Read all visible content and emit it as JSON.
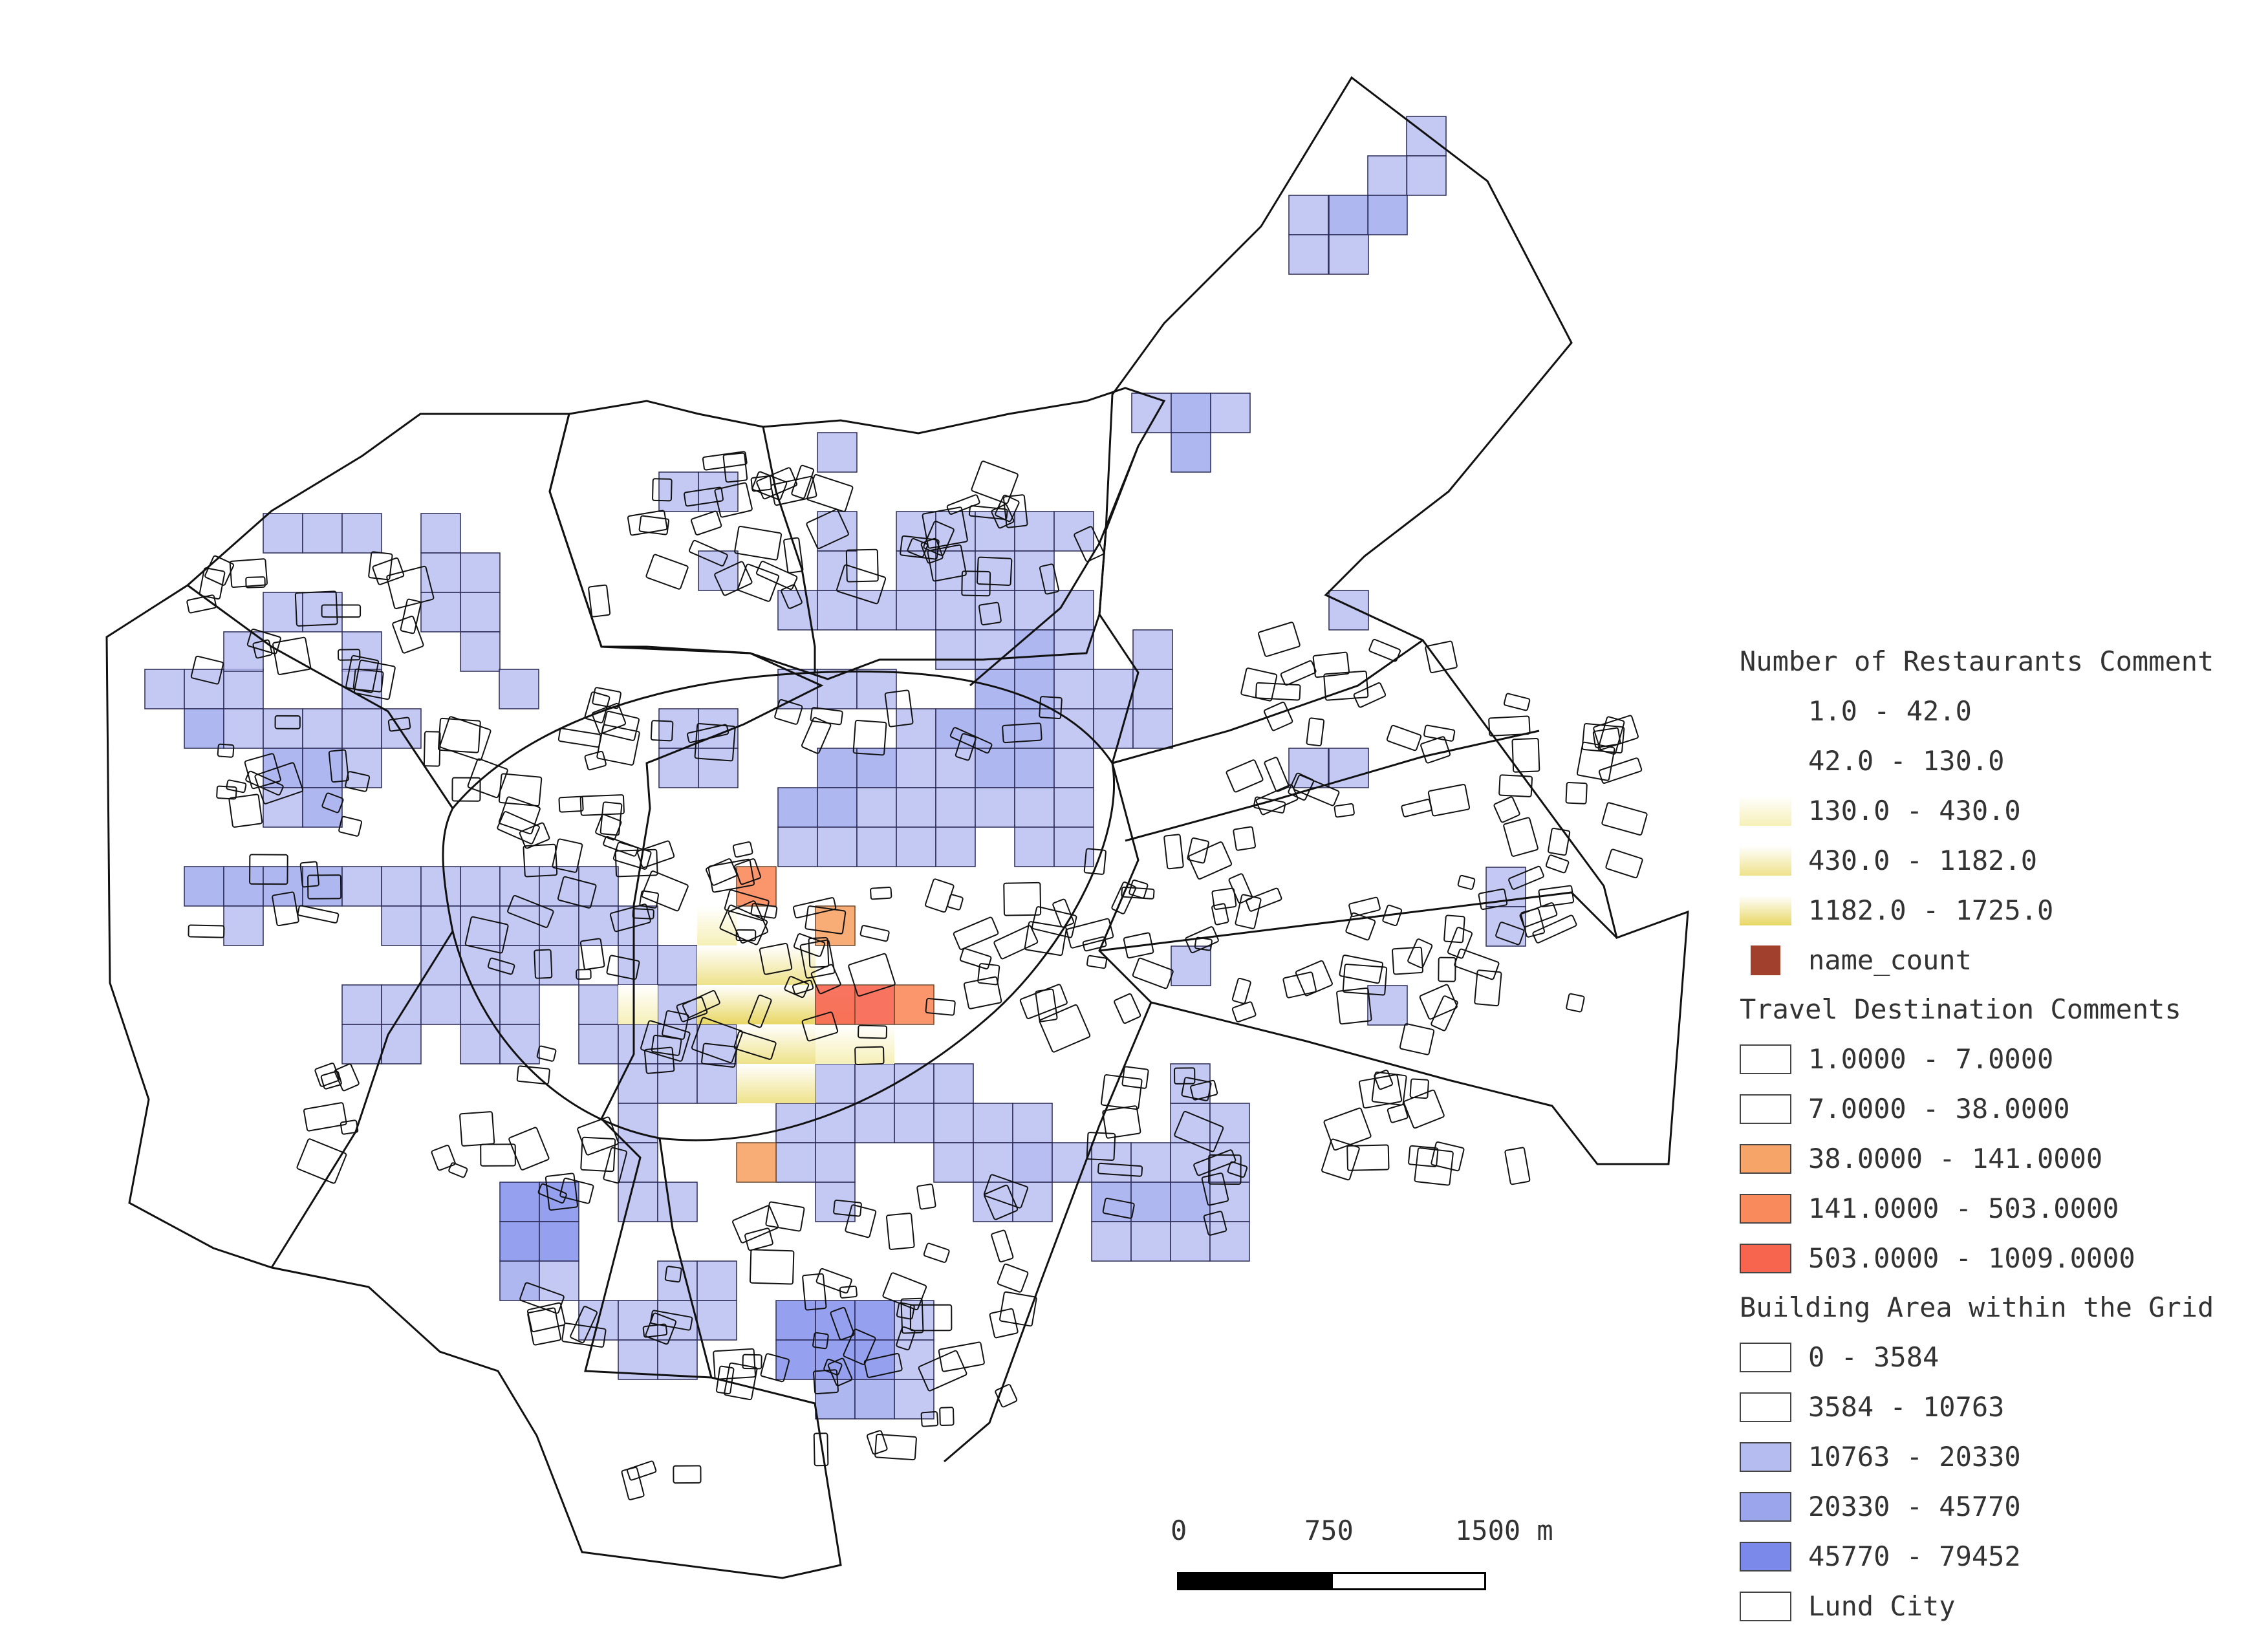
{
  "legend": {
    "restaurants": {
      "title": "Number of Restaurants Comment",
      "items": [
        {
          "label": "1.0 - 42.0",
          "color": "#ffffff"
        },
        {
          "label": "42.0 - 130.0",
          "color": "#ffffff"
        },
        {
          "label": "130.0 - 430.0",
          "color": "#f6f0b8"
        },
        {
          "label": "430.0 - 1182.0",
          "color": "#eee28a"
        },
        {
          "label": "1182.0 - 1725.0",
          "color": "#e8d763"
        },
        {
          "label": "name_count",
          "color": "#a0402d"
        }
      ]
    },
    "travel": {
      "title": "Travel Destination Comments",
      "items": [
        {
          "label": "1.0000 - 7.0000",
          "color": "#ffffff"
        },
        {
          "label": "7.0000 - 38.0000",
          "color": "#ffffff"
        },
        {
          "label": "38.0000 - 141.0000",
          "color": "#f7a468"
        },
        {
          "label": "141.0000 - 503.0000",
          "color": "#f98a5c"
        },
        {
          "label": "503.0000 - 1009.0000",
          "color": "#f7654f"
        }
      ]
    },
    "buildings": {
      "title": "Building Area within the Grid",
      "items": [
        {
          "label": "0 - 3584",
          "color": "#ffffff"
        },
        {
          "label": "3584 - 10763",
          "color": "#ffffff"
        },
        {
          "label": "10763 - 20330",
          "color": "#b5bcf0"
        },
        {
          "label": "20330 - 45770",
          "color": "#9aa5ec"
        },
        {
          "label": "45770 - 79452",
          "color": "#7b89ea"
        },
        {
          "label": "Lund City",
          "color": "#ffffff"
        }
      ]
    }
  },
  "scale_bar": {
    "labels": [
      "0",
      "750",
      "1500 m"
    ]
  },
  "grid": {
    "blue_light": [
      [
        3,
        35
      ],
      [
        4,
        35
      ],
      [
        5,
        35
      ],
      [
        4,
        36
      ],
      [
        4,
        37
      ],
      [
        5,
        38
      ],
      [
        5,
        39
      ],
      [
        4,
        40
      ],
      [
        5,
        40
      ],
      [
        5,
        41
      ],
      [
        2,
        40
      ],
      [
        3,
        41
      ],
      [
        4,
        41
      ],
      [
        2,
        42
      ],
      [
        3,
        42
      ],
      [
        1,
        43
      ],
      [
        1,
        44
      ],
      [
        2,
        44
      ],
      [
        3,
        44
      ],
      [
        1,
        45
      ],
      [
        3,
        46
      ],
      [
        3,
        47
      ],
      [
        2,
        48
      ],
      [
        2,
        49
      ],
      [
        2,
        50
      ],
      [
        6,
        37
      ],
      [
        6,
        38
      ],
      [
        7,
        39
      ],
      [
        8,
        39
      ],
      [
        9,
        39
      ],
      [
        9,
        40
      ],
      [
        10,
        40
      ],
      [
        11,
        40
      ],
      [
        12,
        40
      ],
      [
        13,
        41
      ],
      [
        14,
        41
      ],
      [
        15,
        41
      ],
      [
        16,
        41
      ],
      [
        15,
        40
      ],
      [
        16,
        40
      ],
      [
        17,
        40
      ],
      [
        18,
        40
      ],
      [
        18,
        39
      ],
      [
        13,
        42
      ],
      [
        14,
        42
      ],
      [
        15,
        42
      ],
      [
        17,
        42
      ],
      [
        18,
        42
      ],
      [
        19,
        42
      ],
      [
        20,
        42
      ],
      [
        21,
        42
      ],
      [
        22,
        42
      ],
      [
        23,
        42
      ],
      [
        24,
        42
      ],
      [
        25,
        42
      ],
      [
        26,
        42
      ],
      [
        27,
        42
      ],
      [
        12,
        43
      ],
      [
        13,
        43
      ],
      [
        14,
        43
      ],
      [
        15,
        43
      ],
      [
        16,
        43
      ],
      [
        17,
        43
      ],
      [
        18,
        43
      ],
      [
        19,
        43
      ],
      [
        20,
        43
      ],
      [
        21,
        43
      ],
      [
        22,
        43
      ],
      [
        23,
        43
      ],
      [
        24,
        43
      ],
      [
        25,
        43
      ],
      [
        26,
        43
      ],
      [
        28,
        43
      ],
      [
        12,
        44
      ],
      [
        13,
        44
      ],
      [
        14,
        44
      ],
      [
        15,
        44
      ],
      [
        16,
        44
      ],
      [
        17,
        44
      ],
      [
        18,
        44
      ],
      [
        19,
        44
      ],
      [
        20,
        44
      ],
      [
        21,
        44
      ],
      [
        22,
        44
      ],
      [
        23,
        44
      ],
      [
        24,
        44
      ],
      [
        25,
        44
      ],
      [
        26,
        44
      ],
      [
        23,
        39
      ],
      [
        24,
        39
      ],
      [
        25,
        39
      ],
      [
        26,
        39
      ],
      [
        22,
        40
      ],
      [
        23,
        40
      ],
      [
        24,
        40
      ],
      [
        25,
        40
      ],
      [
        26,
        40
      ],
      [
        27,
        41
      ],
      [
        28,
        41
      ],
      [
        29,
        41
      ],
      [
        30,
        41
      ],
      [
        31,
        41
      ],
      [
        32,
        41
      ],
      [
        8,
        30
      ],
      [
        8,
        31
      ],
      [
        8,
        32
      ],
      [
        9,
        33
      ],
      [
        10,
        33
      ],
      [
        6,
        34
      ],
      [
        7,
        34
      ],
      [
        8,
        34
      ],
      [
        9,
        34
      ],
      [
        10,
        35
      ],
      [
        11,
        35
      ],
      [
        12,
        35
      ],
      [
        13,
        35
      ],
      [
        14,
        35
      ],
      [
        15,
        35
      ],
      [
        16,
        35
      ],
      [
        17,
        35
      ],
      [
        18,
        35
      ],
      [
        10,
        34
      ],
      [
        12,
        34
      ],
      [
        14,
        34
      ],
      [
        16,
        34
      ],
      [
        18,
        34
      ],
      [
        20,
        34
      ],
      [
        22,
        34
      ],
      [
        24,
        34
      ],
      [
        11,
        38
      ],
      [
        12,
        38
      ],
      [
        13,
        38
      ],
      [
        14,
        38
      ],
      [
        15,
        38
      ],
      [
        16,
        38
      ],
      [
        17,
        38
      ],
      [
        18,
        38
      ],
      [
        10,
        39
      ],
      [
        11,
        39
      ],
      [
        12,
        39
      ],
      [
        13,
        39
      ],
      [
        14,
        39
      ],
      [
        15,
        39
      ],
      [
        16,
        39
      ],
      [
        17,
        39
      ],
      [
        13,
        37
      ],
      [
        14,
        37
      ],
      [
        15,
        37
      ],
      [
        16,
        37
      ],
      [
        17,
        37
      ],
      [
        18,
        37
      ],
      [
        19,
        37
      ],
      [
        20,
        37
      ],
      [
        21,
        37
      ],
      [
        22,
        37
      ],
      [
        23,
        37
      ],
      [
        24,
        37
      ],
      [
        25,
        37
      ],
      [
        26,
        37
      ],
      [
        20,
        36
      ],
      [
        21,
        36
      ],
      [
        22,
        36
      ],
      [
        23,
        36
      ],
      [
        24,
        36
      ],
      [
        25,
        36
      ],
      [
        26,
        36
      ],
      [
        12,
        36
      ],
      [
        13,
        36
      ],
      [
        14,
        36
      ],
      [
        15,
        36
      ],
      [
        16,
        36
      ],
      [
        17,
        36
      ],
      [
        18,
        36
      ],
      [
        19,
        36
      ],
      [
        20,
        36
      ]
    ]
  }
}
